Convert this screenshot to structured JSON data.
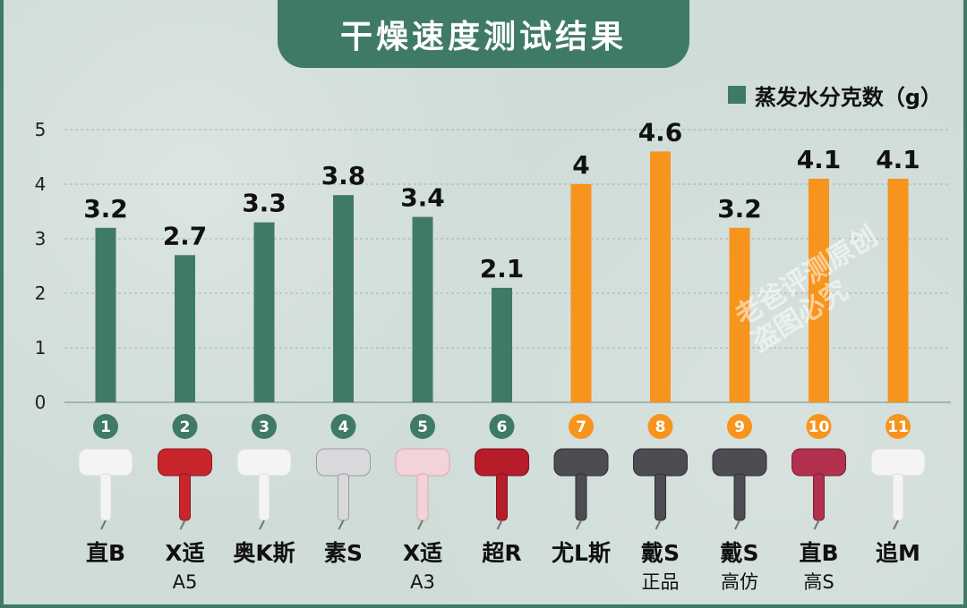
{
  "header": {
    "title": "干燥速度测试结果"
  },
  "legend": {
    "label": "蒸发水分克数（g）"
  },
  "colors": {
    "green": "#3f7a66",
    "orange": "#f7941d"
  },
  "watermark": {
    "line1": "老爸评测原创",
    "line2": "盗图必究"
  },
  "chart_data": {
    "type": "bar",
    "title": "干燥速度测试结果",
    "ylim": [
      0,
      5
    ],
    "yticks": [
      0,
      1,
      2,
      3,
      4,
      5
    ],
    "grid": true,
    "legend_position": "top-right",
    "series": [
      {
        "name": "蒸发水分克数（g）"
      }
    ],
    "bars": [
      {
        "num": "1",
        "name": "直B",
        "sub": "",
        "value": 3.2,
        "value_label": "3.2",
        "color": "green",
        "product": "white"
      },
      {
        "num": "2",
        "name": "X适",
        "sub": "A5",
        "value": 2.7,
        "value_label": "2.7",
        "color": "green",
        "product": "red"
      },
      {
        "num": "3",
        "name": "奥K斯",
        "sub": "",
        "value": 3.3,
        "value_label": "3.3",
        "color": "green",
        "product": "white"
      },
      {
        "num": "4",
        "name": "素S",
        "sub": "",
        "value": 3.8,
        "value_label": "3.8",
        "color": "green",
        "product": "silver"
      },
      {
        "num": "5",
        "name": "X适",
        "sub": "A3",
        "value": 3.4,
        "value_label": "3.4",
        "color": "green",
        "product": "pink"
      },
      {
        "num": "6",
        "name": "超R",
        "sub": "",
        "value": 2.1,
        "value_label": "2.1",
        "color": "green",
        "product": "crimson"
      },
      {
        "num": "7",
        "name": "尤L斯",
        "sub": "",
        "value": 4,
        "value_label": "4",
        "color": "orange",
        "product": "grey"
      },
      {
        "num": "8",
        "name": "戴S",
        "sub": "正品",
        "value": 4.6,
        "value_label": "4.6",
        "color": "orange",
        "product": "grey"
      },
      {
        "num": "9",
        "name": "戴S",
        "sub": "高仿",
        "value": 3.2,
        "value_label": "3.2",
        "color": "orange",
        "product": "grey"
      },
      {
        "num": "10",
        "name": "直B",
        "sub": "高S",
        "value": 4.1,
        "value_label": "4.1",
        "color": "orange",
        "product": "rose"
      },
      {
        "num": "11",
        "name": "追M",
        "sub": "",
        "value": 4.1,
        "value_label": "4.1",
        "color": "orange",
        "product": "white"
      }
    ]
  }
}
